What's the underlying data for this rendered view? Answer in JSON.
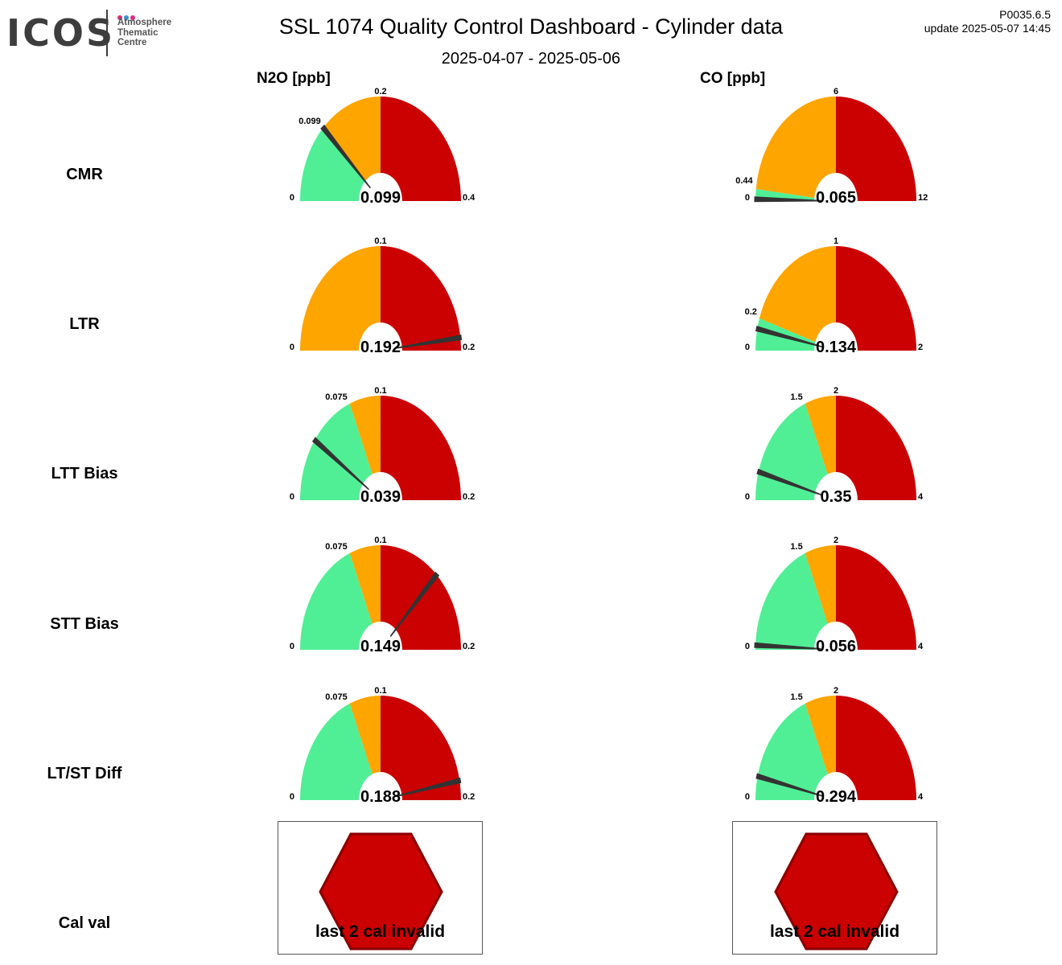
{
  "logo": {
    "name": "ICOS",
    "subtitle": "Atmosphere\nThematic\nCentre",
    "dot_colors": [
      "#e4297c",
      "#3a8dde",
      "#e4297c"
    ]
  },
  "header": {
    "title": "SSL 1074 Quality Control Dashboard - Cylinder data",
    "subtitle": "2025-04-07 - 2025-05-06",
    "version": "P0035.6.5",
    "update": "update  2025-05-07 14:45"
  },
  "columns": [
    "N2O [ppb]",
    "CO [ppb]"
  ],
  "rows": [
    "CMR",
    "LTR",
    "LTT Bias",
    "STT Bias",
    "LT/ST Diff",
    "Cal val"
  ],
  "colors": {
    "green": "#50ef95",
    "orange": "#fea500",
    "red": "#cb0000",
    "needle": "#333333",
    "hexagon_fill": "#cb0000",
    "hexagon_stroke": "#8b0000"
  },
  "chart_data": [
    {
      "type": "gauge",
      "metric": "CMR",
      "column": "N2O [ppb]",
      "min": 0,
      "max": 0.4,
      "green_max": 0.099,
      "orange_max": 0.2,
      "value": 0.099,
      "tick_labels": {
        "min": "0",
        "max": "0.4",
        "green_max": "0.099",
        "orange_max": "0.2"
      },
      "value_label": "0.099"
    },
    {
      "type": "gauge",
      "metric": "CMR",
      "column": "CO [ppb]",
      "min": 0,
      "max": 12,
      "green_max": 0.44,
      "orange_max": 6,
      "value": 0.065,
      "tick_labels": {
        "min": "0",
        "max": "12",
        "green_max": "0.44",
        "orange_max": "6"
      },
      "value_label": "0.065"
    },
    {
      "type": "gauge",
      "metric": "LTR",
      "column": "N2O [ppb]",
      "min": 0,
      "max": 0.2,
      "green_max": 0,
      "orange_max": 0.1,
      "value": 0.192,
      "tick_labels": {
        "min": "0",
        "max": "0.2",
        "orange_max": "0.1"
      },
      "value_label": "0.192"
    },
    {
      "type": "gauge",
      "metric": "LTR",
      "column": "CO [ppb]",
      "min": 0,
      "max": 2,
      "green_max": 0.2,
      "orange_max": 1,
      "value": 0.134,
      "tick_labels": {
        "min": "0",
        "max": "2",
        "green_max": "0.2",
        "orange_max": "1"
      },
      "value_label": "0.134"
    },
    {
      "type": "gauge",
      "metric": "LTT Bias",
      "column": "N2O [ppb]",
      "min": 0,
      "max": 0.2,
      "green_max": 0.075,
      "orange_max": 0.1,
      "value": 0.039,
      "tick_labels": {
        "min": "0",
        "max": "0.2",
        "green_max": "0.075",
        "orange_max": "0.1"
      },
      "value_label": "0.039"
    },
    {
      "type": "gauge",
      "metric": "LTT Bias",
      "column": "CO [ppb]",
      "min": 0,
      "max": 4,
      "green_max": 1.5,
      "orange_max": 2,
      "value": 0.35,
      "tick_labels": {
        "min": "0",
        "max": "4",
        "green_max": "1.5",
        "orange_max": "2"
      },
      "value_label": "0.35"
    },
    {
      "type": "gauge",
      "metric": "STT Bias",
      "column": "N2O [ppb]",
      "min": 0,
      "max": 0.2,
      "green_max": 0.075,
      "orange_max": 0.1,
      "value": 0.149,
      "tick_labels": {
        "min": "0",
        "max": "0.2",
        "green_max": "0.075",
        "orange_max": "0.1"
      },
      "value_label": "0.149"
    },
    {
      "type": "gauge",
      "metric": "STT Bias",
      "column": "CO [ppb]",
      "min": 0,
      "max": 4,
      "green_max": 1.5,
      "orange_max": 2,
      "value": 0.056,
      "tick_labels": {
        "min": "0",
        "max": "4",
        "green_max": "1.5",
        "orange_max": "2"
      },
      "value_label": "0.056"
    },
    {
      "type": "gauge",
      "metric": "LT/ST Diff",
      "column": "N2O [ppb]",
      "min": 0,
      "max": 0.2,
      "green_max": 0.075,
      "orange_max": 0.1,
      "value": 0.188,
      "tick_labels": {
        "min": "0",
        "max": "0.2",
        "green_max": "0.075",
        "orange_max": "0.1"
      },
      "value_label": "0.188"
    },
    {
      "type": "gauge",
      "metric": "LT/ST Diff",
      "column": "CO [ppb]",
      "min": 0,
      "max": 4,
      "green_max": 1.5,
      "orange_max": 2,
      "value": 0.294,
      "tick_labels": {
        "min": "0",
        "max": "4",
        "green_max": "1.5",
        "orange_max": "2"
      },
      "value_label": "0.294"
    }
  ],
  "cal_val": [
    {
      "column": "N2O [ppb]",
      "status": "last 2 cal invalid",
      "shape": "hexagon"
    },
    {
      "column": "CO [ppb]",
      "status": "last 2 cal invalid",
      "shape": "hexagon"
    }
  ]
}
